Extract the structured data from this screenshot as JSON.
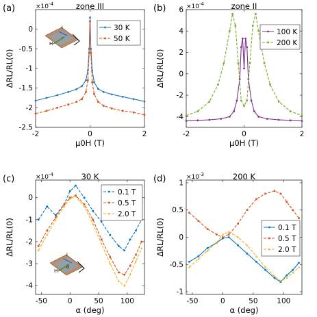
{
  "chart_data": [
    {
      "panel_label": "(a)",
      "title": "zone III",
      "type": "line",
      "exponent_label": "×10",
      "exponent_power": "-4",
      "xlabel": "μ0H (T)",
      "ylabel": "ΔRL/RL(0)",
      "xlim": [
        -2,
        2
      ],
      "ylim": [
        -2.5,
        0.5
      ],
      "xticks": [
        -2,
        0,
        2
      ],
      "yticks": [
        -2.5,
        -2,
        -1.5,
        -1,
        -0.5,
        0
      ],
      "ytick_labels": [
        "-2.5",
        "-2",
        "-1.5",
        "-1",
        "-0.5",
        "0"
      ],
      "xtick_labels": [
        "-2",
        "0",
        "2"
      ],
      "legend_position": "top-right",
      "inset": "sample schematic (I, H)",
      "series": [
        {
          "name": "30 K",
          "color": "#1f77b4",
          "style": "solid",
          "x": [
            -2,
            -1.6,
            -1.2,
            -0.8,
            -0.5,
            -0.3,
            -0.15,
            -0.08,
            -0.03,
            0,
            0.03,
            0.08,
            0.15,
            0.3,
            0.5,
            0.8,
            1.2,
            1.6,
            2
          ],
          "y": [
            -1.82,
            -1.75,
            -1.68,
            -1.6,
            -1.53,
            -1.45,
            -1.3,
            -1.05,
            -0.5,
            0.3,
            -0.5,
            -1.05,
            -1.35,
            -1.52,
            -1.6,
            -1.66,
            -1.72,
            -1.78,
            -1.84
          ]
        },
        {
          "name": "50 K",
          "color": "#d95319",
          "style": "dashed",
          "x": [
            -2,
            -1.6,
            -1.2,
            -0.8,
            -0.5,
            -0.3,
            -0.15,
            -0.08,
            -0.03,
            0,
            0.03,
            0.08,
            0.15,
            0.3,
            0.5,
            0.8,
            1.2,
            1.6,
            2
          ],
          "y": [
            -2.15,
            -2.08,
            -2.0,
            -1.92,
            -1.85,
            -1.78,
            -1.6,
            -1.3,
            -0.6,
            0.2,
            -0.6,
            -1.35,
            -1.65,
            -1.85,
            -1.95,
            -2.02,
            -2.08,
            -2.12,
            -2.18
          ]
        }
      ]
    },
    {
      "panel_label": "(b)",
      "title": "zone II",
      "type": "line",
      "exponent_label": "×10",
      "exponent_power": "-4",
      "xlabel": "μ0H (T)",
      "ylabel": "ΔRL/RL(0)",
      "xlim": [
        -2,
        2
      ],
      "ylim": [
        -5,
        6
      ],
      "xticks": [
        -2,
        0,
        2
      ],
      "yticks": [
        -4,
        -2,
        0,
        2,
        4,
        6
      ],
      "ytick_labels": [
        "-4",
        "-2",
        "0",
        "2",
        "4",
        "6"
      ],
      "xtick_labels": [
        "-2",
        "0",
        "2"
      ],
      "legend_position": "top-right",
      "series": [
        {
          "name": "100 K",
          "color": "#7e2f8e",
          "style": "solid",
          "x": [
            -2,
            -1.6,
            -1.2,
            -0.8,
            -0.5,
            -0.35,
            -0.25,
            -0.15,
            -0.1,
            -0.05,
            0,
            0.05,
            0.1,
            0.15,
            0.25,
            0.35,
            0.5,
            0.8,
            1.2,
            1.6,
            2
          ],
          "y": [
            -4.4,
            -4.35,
            -4.3,
            -4.2,
            -4.0,
            -3.5,
            -2.5,
            -0.5,
            2.5,
            3.3,
            0.5,
            3.3,
            2.5,
            -0.5,
            -2.5,
            -3.5,
            -4.0,
            -4.2,
            -4.3,
            -4.35,
            -4.4
          ]
        },
        {
          "name": "200 K",
          "color": "#77ac30",
          "style": "dashed",
          "x": [
            -2,
            -1.6,
            -1.2,
            -0.9,
            -0.7,
            -0.5,
            -0.4,
            -0.3,
            -0.2,
            -0.1,
            0,
            0.1,
            0.2,
            0.3,
            0.4,
            0.5,
            0.7,
            0.9,
            1.2,
            1.6,
            2
          ],
          "y": [
            -3.9,
            -3.5,
            -2.6,
            -1.0,
            1.0,
            4.0,
            5.6,
            4.5,
            1.0,
            -2.5,
            -3.0,
            -2.5,
            1.0,
            4.5,
            5.6,
            4.0,
            1.0,
            -1.0,
            -2.6,
            -3.5,
            -3.9
          ]
        }
      ]
    },
    {
      "panel_label": "(c)",
      "title": "30 K",
      "type": "line",
      "exponent_label": "×10",
      "exponent_power": "-4",
      "xlabel": "α (deg)",
      "ylabel": "ΔRL/RL(0)",
      "xlim": [
        -60,
        130
      ],
      "ylim": [
        -4.4,
        0.8
      ],
      "xticks": [
        -50,
        0,
        50,
        100
      ],
      "yticks": [
        -4,
        -3,
        -2,
        -1,
        0
      ],
      "ytick_labels": [
        "-4",
        "-3",
        "-2",
        "-1",
        "0"
      ],
      "xtick_labels": [
        "-50",
        "0",
        "50",
        "100"
      ],
      "legend_position": "top-right",
      "inset": "sample schematic (I, H, α)",
      "series": [
        {
          "name": "0.1 T",
          "color": "#0072bd",
          "style": "dashed",
          "x": [
            -55,
            -40,
            -25,
            -10,
            0,
            10,
            25,
            40,
            55,
            70,
            85,
            95,
            105,
            115,
            125
          ],
          "y": [
            -1.0,
            -0.4,
            -0.8,
            -0.3,
            0.3,
            0.55,
            0.0,
            -0.6,
            -1.1,
            -1.7,
            -2.2,
            -2.4,
            -1.9,
            -1.5,
            -1.0
          ]
        },
        {
          "name": "0.5 T",
          "color": "#d95319",
          "style": "dashed",
          "x": [
            -55,
            -40,
            -25,
            -10,
            0,
            10,
            25,
            40,
            55,
            70,
            85,
            95,
            105,
            115,
            125
          ],
          "y": [
            -2.2,
            -1.5,
            -0.9,
            -0.3,
            0.0,
            0.1,
            -0.3,
            -1.0,
            -1.9,
            -2.7,
            -3.4,
            -3.5,
            -3.1,
            -2.6,
            -2.0
          ]
        },
        {
          "name": "2.0 T",
          "color": "#edb120",
          "style": "dashed",
          "x": [
            -55,
            -40,
            -25,
            -10,
            0,
            10,
            25,
            40,
            55,
            70,
            85,
            95,
            105,
            115,
            125
          ],
          "y": [
            -2.4,
            -1.7,
            -1.0,
            -0.4,
            -0.05,
            0.05,
            -0.4,
            -1.2,
            -2.1,
            -3.0,
            -3.8,
            -4.0,
            -3.5,
            -2.9,
            -2.3
          ]
        }
      ]
    },
    {
      "panel_label": "(d)",
      "title": "200 K",
      "type": "line",
      "exponent_label": "×10",
      "exponent_power": "-3",
      "xlabel": "α (deg)",
      "ylabel": "ΔRL/RL(0)",
      "xlim": [
        -60,
        130
      ],
      "ylim": [
        -1.05,
        1.05
      ],
      "xticks": [
        -50,
        0,
        50,
        100
      ],
      "yticks": [
        -1,
        -0.5,
        0,
        0.5,
        1
      ],
      "ytick_labels": [
        "-1",
        "-0.5",
        "0",
        "0.5",
        "1"
      ],
      "xtick_labels": [
        "-50",
        "0",
        "50",
        "100"
      ],
      "legend_position": "center-right",
      "series": [
        {
          "name": "0.1 T",
          "color": "#0072bd",
          "style": "solid",
          "x": [
            -55,
            -40,
            -25,
            -10,
            0,
            10,
            25,
            40,
            55,
            70,
            85,
            95,
            105,
            115,
            125
          ],
          "y": [
            -0.45,
            -0.35,
            -0.2,
            -0.1,
            -0.02,
            0.0,
            -0.15,
            -0.3,
            -0.45,
            -0.6,
            -0.75,
            -0.82,
            -0.7,
            -0.6,
            -0.47
          ]
        },
        {
          "name": "0.5 T",
          "color": "#d95319",
          "style": "dashed",
          "x": [
            -55,
            -40,
            -25,
            -10,
            0,
            10,
            25,
            40,
            55,
            70,
            85,
            95,
            105,
            115,
            125
          ],
          "y": [
            0.45,
            0.3,
            0.15,
            0.05,
            0.0,
            0.05,
            0.25,
            0.5,
            0.7,
            0.8,
            0.85,
            0.8,
            0.65,
            0.5,
            0.35
          ]
        },
        {
          "name": "2.0 T",
          "color": "#edb120",
          "style": "dashed",
          "x": [
            -55,
            -40,
            -25,
            -10,
            0,
            10,
            25,
            40,
            55,
            70,
            85,
            95,
            105,
            115,
            125
          ],
          "y": [
            -0.55,
            -0.4,
            -0.25,
            -0.1,
            0.05,
            0.1,
            0.0,
            -0.15,
            -0.35,
            -0.55,
            -0.72,
            -0.8,
            -0.75,
            -0.65,
            -0.55
          ]
        }
      ]
    }
  ]
}
